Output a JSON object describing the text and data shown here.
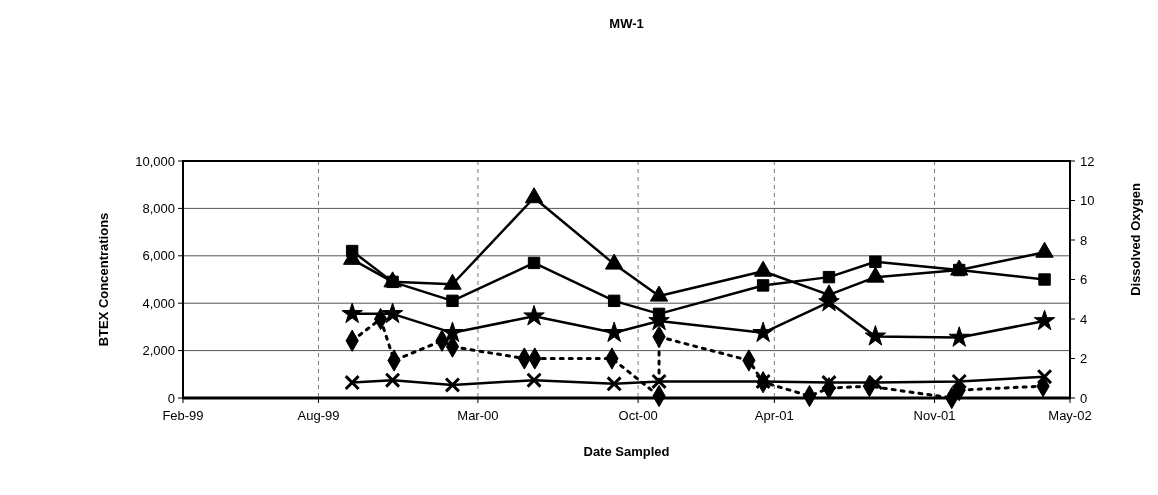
{
  "chart_data": {
    "type": "line",
    "title": "MW-1",
    "xlabel": "Date Sampled",
    "ylabel": "BTEX Concentrations",
    "y2label": "Dissolved Oxygen",
    "xlim": [
      "1999-02-01",
      "2002-05-01"
    ],
    "xticks": [
      {
        "value": "1999-02-01",
        "label": "Feb-99"
      },
      {
        "value": "1999-08-01",
        "label": "Aug-99"
      },
      {
        "value": "2000-03-01",
        "label": "Mar-00"
      },
      {
        "value": "2000-10-01",
        "label": "Oct-00"
      },
      {
        "value": "2001-04-01",
        "label": "Apr-01"
      },
      {
        "value": "2001-11-01",
        "label": "Nov-01"
      },
      {
        "value": "2002-05-01",
        "label": "May-02"
      }
    ],
    "ylim": [
      0,
      10000
    ],
    "yticks": [
      0,
      {
        "value": 2000,
        "label": "2,000"
      },
      {
        "value": 4000,
        "label": "4,000"
      },
      {
        "value": 6000,
        "label": "6,000"
      },
      {
        "value": 8000,
        "label": "8,000"
      },
      {
        "value": 10000,
        "label": "10,000"
      }
    ],
    "y2lim": [
      0,
      12
    ],
    "y2ticks": [
      0,
      2,
      4,
      6,
      8,
      10,
      12
    ],
    "grid": true,
    "series": [
      {
        "color": "#000000",
        "marker": "triangle",
        "line_style": "solid",
        "x": [
          "1999-09-15",
          "1999-11-08",
          "2000-01-27",
          "2000-05-15",
          "2000-08-30",
          "2000-10-29",
          "2001-03-17",
          "2001-06-13",
          "2001-08-14",
          "2001-12-04",
          "2002-03-28"
        ],
        "values": [
          5850,
          4900,
          4800,
          8450,
          5650,
          4300,
          5350,
          4350,
          5100,
          5400,
          6150
        ]
      },
      {
        "color": "#000000",
        "marker": "square",
        "line_style": "solid",
        "x": [
          "1999-09-15",
          "1999-11-08",
          "2000-01-27",
          "2000-05-15",
          "2000-08-30",
          "2000-10-29",
          "2001-03-17",
          "2001-06-13",
          "2001-08-14",
          "2001-12-04",
          "2002-03-28"
        ],
        "values": [
          6200,
          4900,
          4100,
          5700,
          4100,
          3550,
          4750,
          5100,
          5750,
          5400,
          5000
        ]
      },
      {
        "color": "#000000",
        "marker": "star",
        "line_style": "solid",
        "x": [
          "1999-09-15",
          "1999-11-08",
          "2000-01-27",
          "2000-05-15",
          "2000-08-30",
          "2000-10-29",
          "2001-03-17",
          "2001-06-13",
          "2001-08-14",
          "2001-12-04",
          "2002-03-28"
        ],
        "values": [
          3550,
          3550,
          2750,
          3450,
          2750,
          3250,
          2750,
          4050,
          2600,
          2550,
          3250
        ]
      },
      {
        "color": "#000000",
        "marker": "cross",
        "line_style": "solid",
        "x": [
          "1999-09-15",
          "1999-11-08",
          "2000-01-27",
          "2000-05-15",
          "2000-08-30",
          "2000-10-29",
          "2001-03-17",
          "2001-06-13",
          "2001-08-14",
          "2001-12-04",
          "2002-03-28"
        ],
        "values": [
          650,
          750,
          550,
          750,
          600,
          700,
          700,
          650,
          650,
          700,
          900
        ]
      },
      {
        "color": "#000000",
        "marker": "diamond",
        "line_style": "dotted",
        "axis": "y2",
        "x": [
          "1999-09-15",
          "1999-10-23",
          "1999-11-10",
          "2000-01-13",
          "2000-01-27",
          "2000-05-02",
          "2000-05-16",
          "2000-08-27",
          "2000-10-29",
          "2000-10-29",
          "2001-02-26",
          "2001-03-17",
          "2001-05-18",
          "2001-06-13",
          "2001-08-06",
          "2001-11-24",
          "2001-12-04",
          "2002-03-26"
        ],
        "values": [
          2.9,
          4,
          1.9,
          2.9,
          2.6,
          2,
          2,
          2,
          0.1,
          3.1,
          1.9,
          0.8,
          0.1,
          0.5,
          0.6,
          0,
          0.4,
          0.6
        ]
      }
    ]
  }
}
